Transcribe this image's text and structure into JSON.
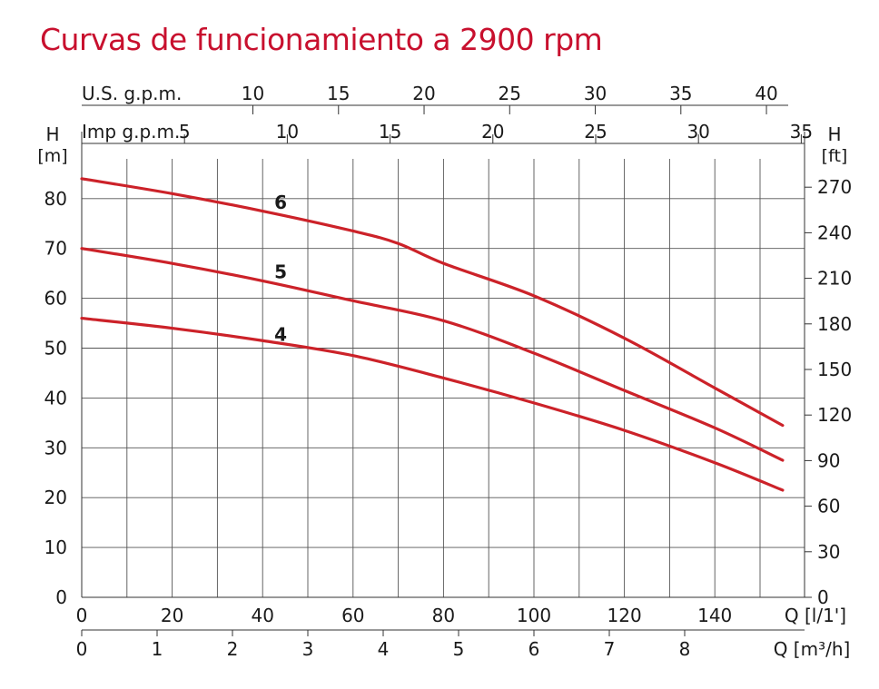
{
  "title": "Curvas de funcionamiento a 2900 rpm",
  "chart_data": {
    "type": "line",
    "title": "Curvas de funcionamiento a 2900 rpm",
    "xlabel": "Q [l/1']",
    "ylabel_left_top": "H",
    "ylabel_left_unit": "[m]",
    "ylabel_right_top": "H",
    "ylabel_right_unit": "[ft]",
    "xlim": [
      0,
      155
    ],
    "ylim": [
      0,
      87
    ],
    "x_ticks": [
      0,
      20,
      40,
      60,
      80,
      100,
      120,
      140
    ],
    "y_ticks": [
      0,
      10,
      20,
      30,
      40,
      50,
      60,
      70,
      80
    ],
    "y_ft_ticks": [
      0,
      30,
      60,
      90,
      120,
      150,
      180,
      210,
      240,
      270
    ],
    "secondary_axes": {
      "m3h": {
        "label": "Q [m³/h]",
        "ticks": [
          0,
          1,
          2,
          3,
          4,
          5,
          6,
          7,
          8
        ]
      },
      "impgpm": {
        "label": "Imp g.p.m.",
        "ticks": [
          5,
          10,
          15,
          20,
          25,
          30,
          35
        ]
      },
      "usgpm": {
        "label": "U.S. g.p.m.",
        "ticks": [
          10,
          15,
          20,
          25,
          30,
          35,
          40
        ]
      }
    },
    "grid": true,
    "series": [
      {
        "name": "6",
        "x": [
          0,
          20,
          40,
          60,
          70,
          80,
          100,
          120,
          140,
          155
        ],
        "values": [
          84,
          81,
          77.5,
          73.5,
          71,
          67,
          60.5,
          52,
          42,
          34.5
        ]
      },
      {
        "name": "5",
        "x": [
          0,
          20,
          40,
          60,
          80,
          100,
          120,
          140,
          155
        ],
        "values": [
          70,
          67,
          63.5,
          59.5,
          55.5,
          49,
          41.5,
          34,
          27.5
        ]
      },
      {
        "name": "4",
        "x": [
          0,
          20,
          40,
          60,
          80,
          100,
          120,
          140,
          155
        ],
        "values": [
          56,
          54,
          51.5,
          48.5,
          44,
          39,
          33.5,
          27,
          21.5
        ]
      }
    ],
    "line_color": "#cc2229"
  }
}
